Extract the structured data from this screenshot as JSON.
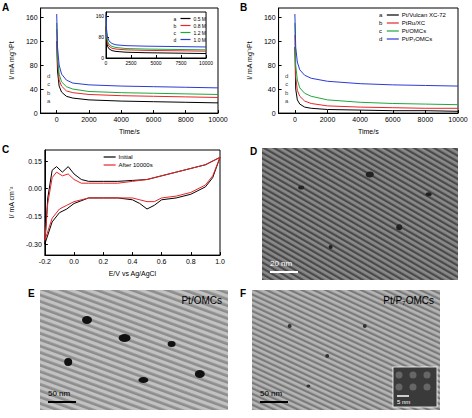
{
  "chart_data": [
    {
      "panel": "A",
      "type": "line",
      "x_label": "Time/s",
      "y_label": "I/ mA mg⁻¹Pt",
      "xlim": [
        -1000,
        10000
      ],
      "xticks": [
        0,
        2000,
        4000,
        6000,
        8000,
        10000
      ],
      "ylim": [
        0,
        175
      ],
      "yticks": [
        0,
        40,
        80,
        120,
        160
      ],
      "grid": false,
      "x": [
        0,
        50,
        150,
        300,
        600,
        1000,
        2000,
        4000,
        6000,
        8000,
        10000
      ],
      "series": [
        {
          "name": "0.5 M",
          "letter": "a",
          "color": "#000000",
          "values": [
            120,
            70,
            45,
            35,
            28,
            25,
            22,
            20,
            19,
            18,
            17
          ]
        },
        {
          "name": "0.8 M",
          "letter": "b",
          "color": "#e8262b",
          "values": [
            140,
            85,
            55,
            45,
            37,
            34,
            31,
            29,
            28,
            27,
            26
          ]
        },
        {
          "name": "1.2 M",
          "letter": "c",
          "color": "#1fa83a",
          "values": [
            150,
            95,
            65,
            52,
            44,
            40,
            36,
            34,
            33,
            32,
            31
          ]
        },
        {
          "name": "1.0 M",
          "letter": "d",
          "color": "#2a3bd6",
          "values": [
            165,
            110,
            80,
            65,
            55,
            50,
            47,
            45,
            44,
            43,
            42
          ]
        }
      ],
      "annotations": [
        {
          "text": "a",
          "x": -500,
          "y": 20
        },
        {
          "text": "b",
          "x": -500,
          "y": 34
        },
        {
          "text": "c",
          "x": -500,
          "y": 48
        },
        {
          "text": "d",
          "x": -500,
          "y": 62
        }
      ],
      "inset": {
        "xlim": [
          0,
          10000
        ],
        "xticks": [
          0,
          2500,
          5000,
          7500,
          10000
        ],
        "ylim": [
          0,
          175
        ],
        "yticks": [
          0,
          80,
          160
        ],
        "legend": "upper right"
      }
    },
    {
      "panel": "B",
      "type": "line",
      "x_label": "Time/s",
      "y_label": "I/ mA mg⁻¹Pt",
      "xlim": [
        -1000,
        10000
      ],
      "xticks": [
        0,
        2000,
        4000,
        6000,
        8000,
        10000
      ],
      "ylim": [
        0,
        175
      ],
      "yticks": [
        0,
        40,
        80,
        120,
        160
      ],
      "grid": false,
      "legend": "upper right",
      "x": [
        0,
        50,
        150,
        300,
        600,
        1000,
        2000,
        4000,
        6000,
        8000,
        10000
      ],
      "series": [
        {
          "name": "Pt/Vulcan XC-72",
          "letter": "a",
          "color": "#000000",
          "values": [
            110,
            40,
            22,
            15,
            10,
            8,
            6,
            5,
            4,
            4,
            3
          ]
        },
        {
          "name": "PtRu/XC",
          "letter": "b",
          "color": "#e8262b",
          "values": [
            130,
            60,
            38,
            28,
            20,
            16,
            12,
            10,
            9,
            8,
            8
          ]
        },
        {
          "name": "Pt/OMCs",
          "letter": "c",
          "color": "#1fa83a",
          "values": [
            150,
            80,
            55,
            42,
            33,
            28,
            22,
            18,
            16,
            15,
            14
          ]
        },
        {
          "name": "Pt/P₇OMCs",
          "letter": "d",
          "color": "#2a3bd6",
          "values": [
            165,
            110,
            85,
            72,
            63,
            58,
            53,
            49,
            47,
            46,
            45
          ]
        }
      ],
      "annotations": [
        {
          "text": "a",
          "x": -500,
          "y": 20
        },
        {
          "text": "b",
          "x": -500,
          "y": 34
        },
        {
          "text": "c",
          "x": -500,
          "y": 48
        },
        {
          "text": "d",
          "x": -500,
          "y": 62
        }
      ]
    },
    {
      "panel": "C",
      "type": "line",
      "x_label": "E/V vs Ag/AgCl",
      "y_label": "I/ mA cm⁻²",
      "xlim": [
        -0.2,
        1.0
      ],
      "xticks": [
        -0.2,
        {
          "value": 0,
          "label": "0.0"
        },
        0.2,
        0.4,
        0.6,
        0.8,
        {
          "value": 1.0,
          "label": "1.0"
        }
      ],
      "ylim": [
        -0.36,
        0.21
      ],
      "yticks": [
        {
          "value": -0.3,
          "label": "-0.30"
        },
        -0.15,
        {
          "value": 0,
          "label": "0.00"
        },
        0.15
      ],
      "grid": false,
      "legend": "upper center",
      "x": [
        -0.2,
        -0.18,
        -0.15,
        -0.12,
        -0.08,
        -0.04,
        0.0,
        0.05,
        0.1,
        0.2,
        0.3,
        0.4,
        0.5,
        0.6,
        0.7,
        0.8,
        0.9,
        1.0,
        0.95,
        0.9,
        0.8,
        0.7,
        0.6,
        0.55,
        0.5,
        0.45,
        0.4,
        0.3,
        0.2,
        0.1,
        0.0,
        -0.05,
        -0.1,
        -0.15,
        -0.2
      ],
      "series": [
        {
          "name": "Initial",
          "color": "#000000",
          "values": [
            -0.3,
            -0.05,
            0.1,
            0.12,
            0.09,
            0.12,
            0.08,
            0.05,
            0.04,
            0.04,
            0.04,
            0.045,
            0.05,
            0.07,
            0.09,
            0.11,
            0.13,
            0.17,
            0.06,
            0.01,
            -0.03,
            -0.05,
            -0.06,
            -0.09,
            -0.11,
            -0.08,
            -0.06,
            -0.05,
            -0.05,
            -0.05,
            -0.08,
            -0.11,
            -0.13,
            -0.18,
            -0.3
          ]
        },
        {
          "name": "After 10000s",
          "color": "#e8262b",
          "values": [
            -0.28,
            -0.08,
            0.06,
            0.09,
            0.07,
            0.08,
            0.05,
            0.03,
            0.03,
            0.03,
            0.03,
            0.04,
            0.05,
            0.07,
            0.09,
            0.11,
            0.13,
            0.17,
            0.07,
            0.02,
            -0.02,
            -0.04,
            -0.05,
            -0.07,
            -0.07,
            -0.06,
            -0.05,
            -0.05,
            -0.05,
            -0.05,
            -0.07,
            -0.09,
            -0.11,
            -0.16,
            -0.28
          ]
        }
      ]
    }
  ],
  "micrographs": [
    {
      "panel": "D",
      "scale_bar": "20 nm"
    },
    {
      "panel": "E",
      "caption": "Pt/OMCs",
      "scale_bar": "50 nm"
    },
    {
      "panel": "F",
      "caption": "Pt/P₇OMCs",
      "scale_bar": "50 nm",
      "inset_scale_bar": "5 nm"
    }
  ]
}
